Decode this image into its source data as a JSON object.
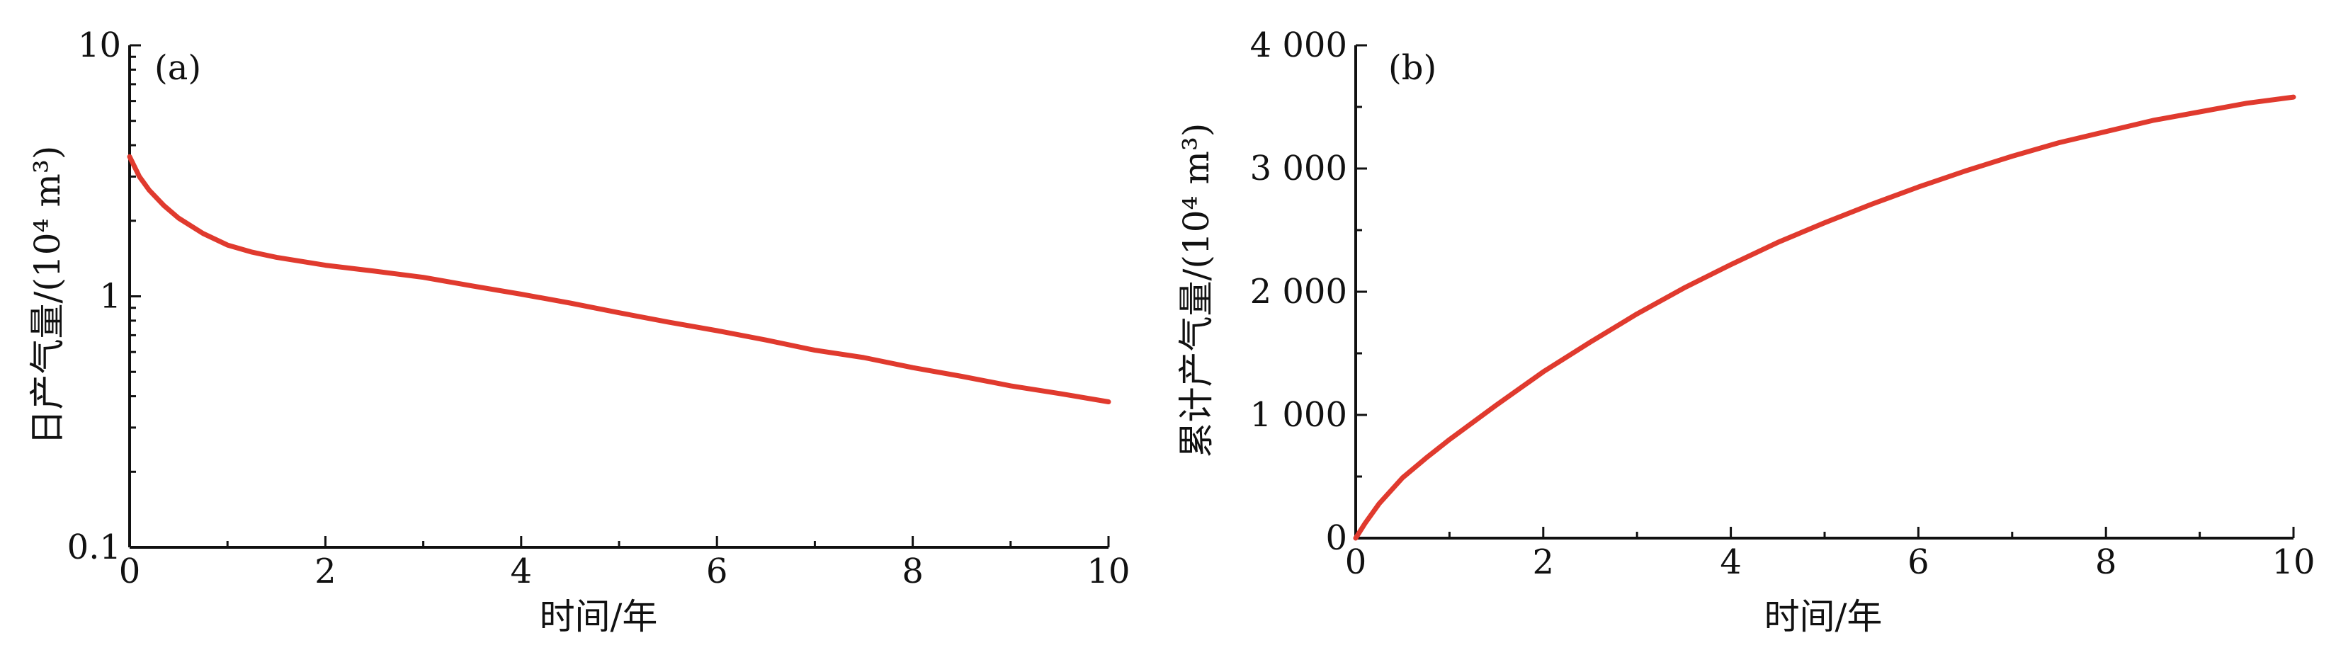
{
  "chart_data": [
    {
      "id": "a",
      "type": "line",
      "panel_label": "(a)",
      "xlabel": "时间/年",
      "ylabel": "日产气量/(10⁴ m³)",
      "xlim": [
        0,
        10
      ],
      "ylim": [
        0.1,
        10
      ],
      "yscale": "log",
      "xticks": [
        0,
        2,
        4,
        6,
        8,
        10
      ],
      "xtick_labels": [
        "0",
        "2",
        "4",
        "6",
        "8",
        "10"
      ],
      "yticks": [
        0.1,
        1,
        10
      ],
      "ytick_labels": [
        "0.1",
        "1",
        "10"
      ],
      "grid": false,
      "series": [
        {
          "color": "#e03a2e",
          "x": [
            0,
            0.1,
            0.2,
            0.35,
            0.5,
            0.75,
            1,
            1.25,
            1.5,
            2,
            2.5,
            3,
            3.5,
            4,
            4.5,
            5,
            5.5,
            6,
            6.5,
            7,
            7.5,
            8,
            8.5,
            9,
            9.5,
            10
          ],
          "y": [
            3.6,
            3.0,
            2.65,
            2.3,
            2.05,
            1.78,
            1.6,
            1.5,
            1.43,
            1.33,
            1.26,
            1.19,
            1.1,
            1.02,
            0.94,
            0.86,
            0.79,
            0.73,
            0.67,
            0.61,
            0.57,
            0.52,
            0.48,
            0.44,
            0.41,
            0.38
          ]
        }
      ]
    },
    {
      "id": "b",
      "type": "line",
      "panel_label": "(b)",
      "xlabel": "时间/年",
      "ylabel": "累计产气量/(10⁴ m³)",
      "xlim": [
        0,
        10
      ],
      "ylim": [
        0,
        4000
      ],
      "xticks": [
        0,
        2,
        4,
        6,
        8,
        10
      ],
      "xtick_labels": [
        "0",
        "2",
        "4",
        "6",
        "8",
        "10"
      ],
      "yticks": [
        0,
        1000,
        2000,
        3000,
        4000
      ],
      "ytick_labels": [
        "0",
        "1 000",
        "2 000",
        "3 000",
        "4 000"
      ],
      "grid": false,
      "series": [
        {
          "color": "#e03a2e",
          "x": [
            0,
            0.1,
            0.25,
            0.5,
            0.75,
            1,
            1.5,
            2,
            2.5,
            3,
            3.5,
            4,
            4.5,
            5,
            5.5,
            6,
            6.5,
            7,
            7.5,
            8,
            8.5,
            9,
            9.5,
            10
          ],
          "y": [
            0,
            120,
            280,
            490,
            650,
            800,
            1080,
            1350,
            1590,
            1820,
            2030,
            2220,
            2400,
            2560,
            2710,
            2850,
            2980,
            3100,
            3210,
            3300,
            3390,
            3460,
            3530,
            3580
          ]
        }
      ]
    }
  ]
}
